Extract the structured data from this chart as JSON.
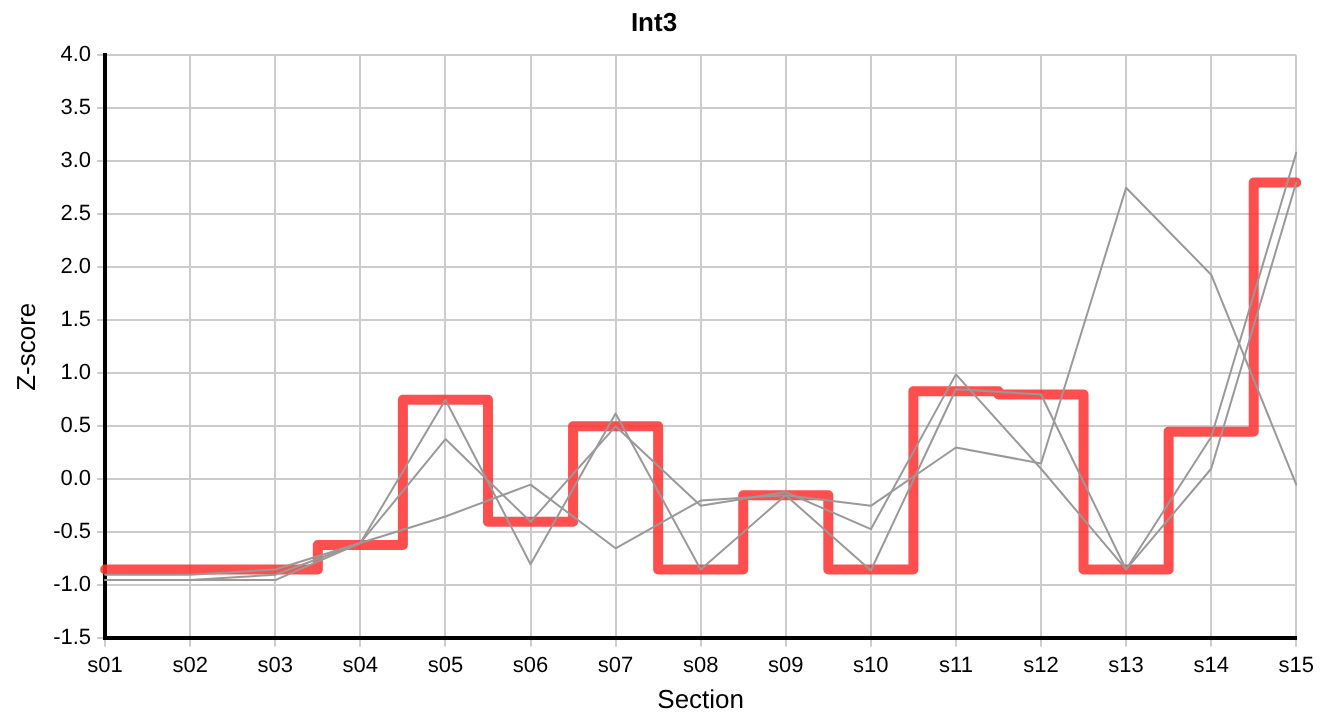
{
  "chart_data": {
    "type": "line",
    "title": "Int3",
    "xlabel": "Section",
    "ylabel": "Z-score",
    "categories": [
      "s01",
      "s02",
      "s03",
      "s04",
      "s05",
      "s06",
      "s07",
      "s08",
      "s09",
      "s10",
      "s11",
      "s12",
      "s13",
      "s14",
      "s15"
    ],
    "ylim": [
      -1.5,
      4.0
    ],
    "yticks": [
      {
        "value": -1.5,
        "label": "-1.5"
      },
      {
        "value": -1,
        "label": "-1.0"
      },
      {
        "value": -0.5,
        "label": "-0.5"
      },
      {
        "value": 0,
        "label": "0.0"
      },
      {
        "value": 0.5,
        "label": "0.5"
      },
      {
        "value": 1,
        "label": "1.0"
      },
      {
        "value": 1.5,
        "label": "1.5"
      },
      {
        "value": 2,
        "label": "2.0"
      },
      {
        "value": 2.5,
        "label": "2.5"
      },
      {
        "value": 3,
        "label": "3.0"
      },
      {
        "value": 3.5,
        "label": "3.5"
      },
      {
        "value": 4,
        "label": "4.0"
      }
    ],
    "grid": true,
    "legend": false,
    "marker": "none",
    "line_style": "solid",
    "series": [
      {
        "type": "line",
        "color": "#999999",
        "values": [
          -0.95,
          -0.95,
          -0.95,
          -0.6,
          -0.35,
          -0.05,
          -0.65,
          -0.2,
          -0.15,
          -0.25,
          0.3,
          0.15,
          2.75,
          1.93,
          -0.05
        ]
      },
      {
        "type": "line",
        "color": "#999999",
        "values": [
          -0.9,
          -0.9,
          -0.85,
          -0.6,
          0.38,
          -0.4,
          0.5,
          -0.25,
          -0.12,
          -0.47,
          0.99,
          0.1,
          -0.85,
          0.4,
          3.08
        ]
      },
      {
        "type": "line",
        "color": "#999999",
        "values": [
          -0.95,
          -0.95,
          -0.9,
          -0.6,
          0.75,
          -0.8,
          0.62,
          -0.85,
          -0.15,
          -0.86,
          0.85,
          0.8,
          -0.85,
          0.1,
          2.8
        ]
      },
      {
        "type": "step",
        "color": "#ff3333",
        "values": [
          -0.85,
          -0.85,
          -0.85,
          -0.62,
          0.75,
          -0.4,
          0.5,
          -0.85,
          -0.15,
          -0.85,
          0.83,
          0.8,
          -0.85,
          0.45,
          2.8
        ]
      }
    ]
  }
}
